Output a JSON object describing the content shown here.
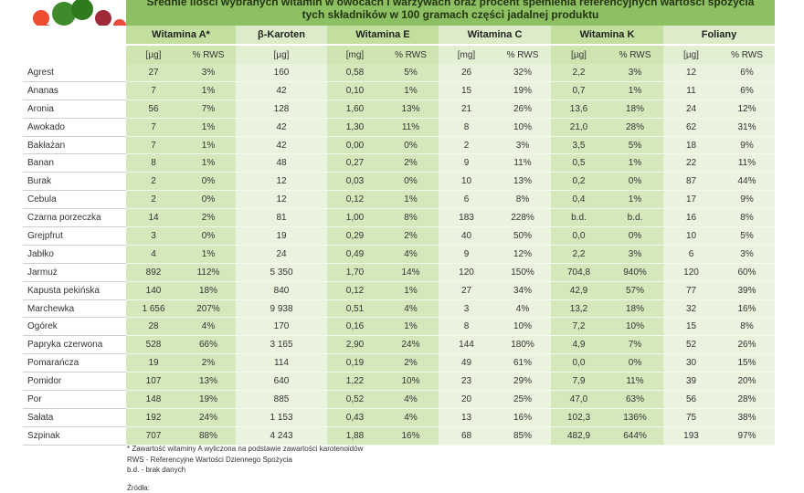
{
  "header": {
    "title": "Średnie ilości wybranych witamin w owocach i warzywach oraz procent spełnienia referencyjnych wartości spożycia tych składników w 100 gramach części jadalnej produktu"
  },
  "table": {
    "groups": [
      {
        "name": "Witamina A*",
        "units": [
          "[µg]",
          "% RWS"
        ]
      },
      {
        "name": "β-Karoten",
        "units": [
          "[µg]"
        ]
      },
      {
        "name": "Witamina  E",
        "units": [
          "[mg]",
          "% RWS"
        ]
      },
      {
        "name": "Witamina C",
        "units": [
          "[mg]",
          "% RWS"
        ]
      },
      {
        "name": "Witamina K",
        "units": [
          "[µg]",
          "% RWS"
        ]
      },
      {
        "name": "Foliany",
        "units": [
          "[µg]",
          "% RWS"
        ]
      }
    ],
    "rows": [
      {
        "name": "Agrest",
        "values": [
          "27",
          "3%",
          "160",
          "0,58",
          "5%",
          "26",
          "32%",
          "2,2",
          "3%",
          "12",
          "6%"
        ]
      },
      {
        "name": "Ananas",
        "values": [
          "7",
          "1%",
          "42",
          "0,10",
          "1%",
          "15",
          "19%",
          "0,7",
          "1%",
          "11",
          "6%"
        ]
      },
      {
        "name": "Aronia",
        "values": [
          "56",
          "7%",
          "128",
          "1,60",
          "13%",
          "21",
          "26%",
          "13,6",
          "18%",
          "24",
          "12%"
        ]
      },
      {
        "name": "Awokado",
        "values": [
          "7",
          "1%",
          "42",
          "1,30",
          "11%",
          "8",
          "10%",
          "21,0",
          "28%",
          "62",
          "31%"
        ]
      },
      {
        "name": "Bakłażan",
        "values": [
          "7",
          "1%",
          "42",
          "0,00",
          "0%",
          "2",
          "3%",
          "3,5",
          "5%",
          "18",
          "9%"
        ]
      },
      {
        "name": "Banan",
        "values": [
          "8",
          "1%",
          "48",
          "0,27",
          "2%",
          "9",
          "11%",
          "0,5",
          "1%",
          "22",
          "11%"
        ]
      },
      {
        "name": "Burak",
        "values": [
          "2",
          "0%",
          "12",
          "0,03",
          "0%",
          "10",
          "13%",
          "0,2",
          "0%",
          "87",
          "44%"
        ]
      },
      {
        "name": "Cebula",
        "values": [
          "2",
          "0%",
          "12",
          "0,12",
          "1%",
          "6",
          "8%",
          "0,4",
          "1%",
          "17",
          "9%"
        ]
      },
      {
        "name": "Czarna porzeczka",
        "values": [
          "14",
          "2%",
          "81",
          "1,00",
          "8%",
          "183",
          "228%",
          "b.d.",
          "b.d.",
          "16",
          "8%"
        ]
      },
      {
        "name": "Grejpfrut",
        "values": [
          "3",
          "0%",
          "19",
          "0,29",
          "2%",
          "40",
          "50%",
          "0,0",
          "0%",
          "10",
          "5%"
        ]
      },
      {
        "name": "Jabłko",
        "values": [
          "4",
          "1%",
          "24",
          "0,49",
          "4%",
          "9",
          "12%",
          "2,2",
          "3%",
          "6",
          "3%"
        ]
      },
      {
        "name": "Jarmuż",
        "values": [
          "892",
          "112%",
          "5 350",
          "1,70",
          "14%",
          "120",
          "150%",
          "704,8",
          "940%",
          "120",
          "60%"
        ]
      },
      {
        "name": "Kapusta pekińska",
        "values": [
          "140",
          "18%",
          "840",
          "0,12",
          "1%",
          "27",
          "34%",
          "42,9",
          "57%",
          "77",
          "39%"
        ]
      },
      {
        "name": "Marchewka",
        "values": [
          "1 656",
          "207%",
          "9 938",
          "0,51",
          "4%",
          "3",
          "4%",
          "13,2",
          "18%",
          "32",
          "16%"
        ]
      },
      {
        "name": "Ogórek",
        "values": [
          "28",
          "4%",
          "170",
          "0,16",
          "1%",
          "8",
          "10%",
          "7,2",
          "10%",
          "15",
          "8%"
        ]
      },
      {
        "name": "Papryka czerwona",
        "values": [
          "528",
          "66%",
          "3 165",
          "2,90",
          "24%",
          "144",
          "180%",
          "4,9",
          "7%",
          "52",
          "26%"
        ]
      },
      {
        "name": "Pomarańcza",
        "values": [
          "19",
          "2%",
          "114",
          "0,19",
          "2%",
          "49",
          "61%",
          "0,0",
          "0%",
          "30",
          "15%"
        ]
      },
      {
        "name": "Pomidor",
        "values": [
          "107",
          "13%",
          "640",
          "1,22",
          "10%",
          "23",
          "29%",
          "7,9",
          "11%",
          "39",
          "20%"
        ]
      },
      {
        "name": "Por",
        "values": [
          "148",
          "19%",
          "885",
          "0,52",
          "4%",
          "20",
          "25%",
          "47,0",
          "63%",
          "56",
          "28%"
        ]
      },
      {
        "name": "Sałata",
        "values": [
          "192",
          "24%",
          "1 153",
          "0,43",
          "4%",
          "13",
          "16%",
          "102,3",
          "136%",
          "75",
          "38%"
        ]
      },
      {
        "name": "Szpinak",
        "values": [
          "707",
          "88%",
          "4 243",
          "1,88",
          "16%",
          "68",
          "85%",
          "482,9",
          "644%",
          "193",
          "97%"
        ]
      }
    ]
  },
  "footnotes": [
    "* Zawartość witaminy A wyliczona na podstawie zawartości karotenoidów",
    "RWS - Referencyjne Wartości Dziennego Spożycia",
    "b.d. - brak danych",
    "Źródła:"
  ]
}
